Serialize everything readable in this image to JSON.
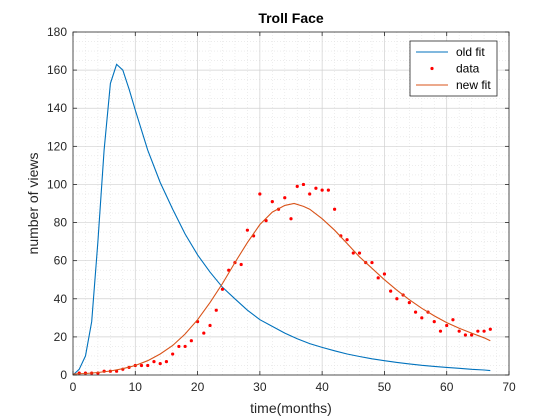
{
  "chart_data": {
    "type": "line",
    "title": "Troll Face",
    "xlabel": "time(months)",
    "ylabel": "number of views",
    "xlim": [
      0,
      70
    ],
    "ylim": [
      0,
      180
    ],
    "xticks": [
      0,
      10,
      20,
      30,
      40,
      50,
      60,
      70
    ],
    "yticks": [
      0,
      20,
      40,
      60,
      80,
      100,
      120,
      140,
      160,
      180
    ],
    "grid": true,
    "minor_grid": true,
    "legend_position": "top-right",
    "series": [
      {
        "name": "old fit",
        "kind": "line",
        "color": "#0072BD",
        "x": [
          0,
          1,
          2,
          3,
          4,
          5,
          6,
          7,
          8,
          9,
          10,
          12,
          14,
          16,
          18,
          20,
          22,
          24,
          26,
          28,
          30,
          32,
          34,
          36,
          38,
          40,
          42,
          44,
          46,
          48,
          50,
          52,
          54,
          56,
          58,
          60,
          62,
          64,
          66,
          67
        ],
        "y": [
          0,
          3,
          10,
          28,
          70,
          118,
          153,
          163,
          160,
          150,
          139,
          118,
          101,
          87,
          74,
          63,
          54,
          46,
          40,
          34,
          29,
          25.5,
          22,
          19,
          16.5,
          14.5,
          12.7,
          11,
          9.7,
          8.5,
          7.5,
          6.6,
          5.8,
          5.1,
          4.5,
          4,
          3.5,
          3,
          2.6,
          2.3
        ]
      },
      {
        "name": "data",
        "kind": "scatter",
        "color": "#FF0000",
        "x": [
          1,
          2,
          3,
          4,
          5,
          6,
          7,
          8,
          9,
          10,
          11,
          12,
          13,
          14,
          15,
          16,
          17,
          18,
          19,
          20,
          21,
          22,
          23,
          24,
          25,
          26,
          27,
          28,
          29,
          30,
          31,
          32,
          33,
          34,
          35,
          36,
          37,
          38,
          39,
          40,
          41,
          42,
          43,
          44,
          45,
          46,
          47,
          48,
          49,
          50,
          51,
          52,
          53,
          54,
          55,
          56,
          57,
          58,
          59,
          60,
          61,
          62,
          63,
          64,
          65,
          66,
          67
        ],
        "y": [
          1,
          1,
          1,
          1,
          2,
          2,
          2,
          3,
          4,
          5,
          5,
          5,
          7,
          6,
          7,
          11,
          15,
          15,
          18,
          28,
          22,
          26,
          34,
          45,
          55,
          59,
          58,
          76,
          73,
          95,
          81,
          91,
          87,
          93,
          82,
          99,
          100,
          95,
          98,
          97,
          97,
          87,
          73,
          71,
          64,
          64,
          59,
          59,
          51,
          53,
          44,
          40,
          42,
          38,
          33,
          30,
          33,
          28,
          23,
          26,
          29,
          23,
          21,
          21,
          23,
          23,
          24
        ]
      },
      {
        "name": "new fit",
        "kind": "line",
        "color": "#D95319",
        "x": [
          0,
          2,
          4,
          6,
          8,
          10,
          12,
          14,
          16,
          18,
          20,
          22,
          24,
          26,
          28,
          30,
          32,
          34,
          35.5,
          37,
          38,
          40,
          42,
          44,
          46,
          48,
          50,
          52,
          54,
          56,
          58,
          60,
          62,
          64,
          66,
          67
        ],
        "y": [
          0.5,
          0.8,
          1.3,
          2.1,
          3.3,
          5,
          7.5,
          11,
          15.5,
          21.5,
          29,
          38,
          48,
          59,
          69.5,
          79,
          85.5,
          89,
          90,
          88.5,
          87,
          82,
          76,
          69,
          62,
          56,
          50,
          44.5,
          39.5,
          35,
          31,
          27.5,
          24.5,
          22,
          19.5,
          18
        ]
      }
    ]
  }
}
